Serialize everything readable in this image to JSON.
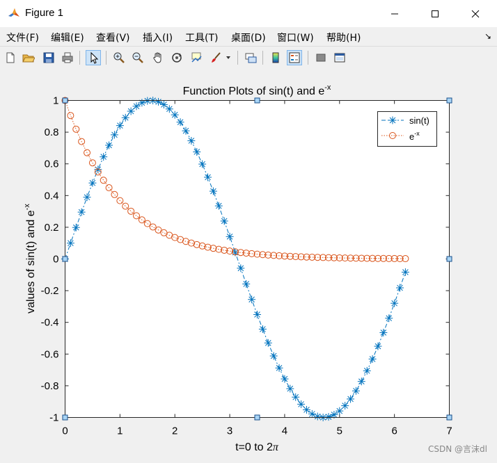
{
  "window": {
    "title": "Figure 1",
    "app_icon": "matlab-icon",
    "controls": [
      "minimize-icon",
      "maximize-icon",
      "close-icon"
    ]
  },
  "menu": [
    "文件(F)",
    "编辑(E)",
    "查看(V)",
    "插入(I)",
    "工具(T)",
    "桌面(D)",
    "窗口(W)",
    "帮助(H)"
  ],
  "toolbar": {
    "icons": [
      "new-figure-icon",
      "open-file-icon",
      "save-icon",
      "print-icon",
      "edit-plot-icon",
      "zoom-in-icon",
      "zoom-out-icon",
      "pan-icon",
      "rotate-3d-icon",
      "data-cursor-icon",
      "brush-icon",
      "link-plot-icon",
      "colorbar-icon",
      "legend-icon",
      "hide-plot-tools-icon",
      "show-plot-tools-icon"
    ],
    "active": "edit-plot-icon"
  },
  "chart_data": {
    "type": "line",
    "title": "Function Plots of sin(t) and e",
    "title_sup": "-x",
    "xlabel": "t=0 to 2",
    "xlabel_pi": "π",
    "ylabel": "values of sin(t) and e",
    "ylabel_sup": "-x",
    "xlim": [
      0,
      7
    ],
    "ylim": [
      -1,
      1
    ],
    "xticks": [
      "0",
      "1",
      "2",
      "3",
      "4",
      "5",
      "6",
      "7"
    ],
    "yticks": [
      "-1",
      "-0.8",
      "-0.6",
      "-0.4",
      "-0.2",
      "0",
      "0.2",
      "0.4",
      "0.6",
      "0.8",
      "1"
    ],
    "grid": false,
    "legend_position": "top-right",
    "x": {
      "start": 0,
      "step": 0.1,
      "end": 6.2
    },
    "series": [
      {
        "name": "sin(t)",
        "function": "sin(t)",
        "color": "#0072bd",
        "marker": "asterisk",
        "linestyle": "dashdot"
      },
      {
        "name": "e",
        "name_sup": "-x",
        "function": "exp(-t)",
        "color": "#d95319",
        "marker": "circle",
        "linestyle": "dotted"
      }
    ]
  },
  "watermark": "CSDN @言沫dl"
}
